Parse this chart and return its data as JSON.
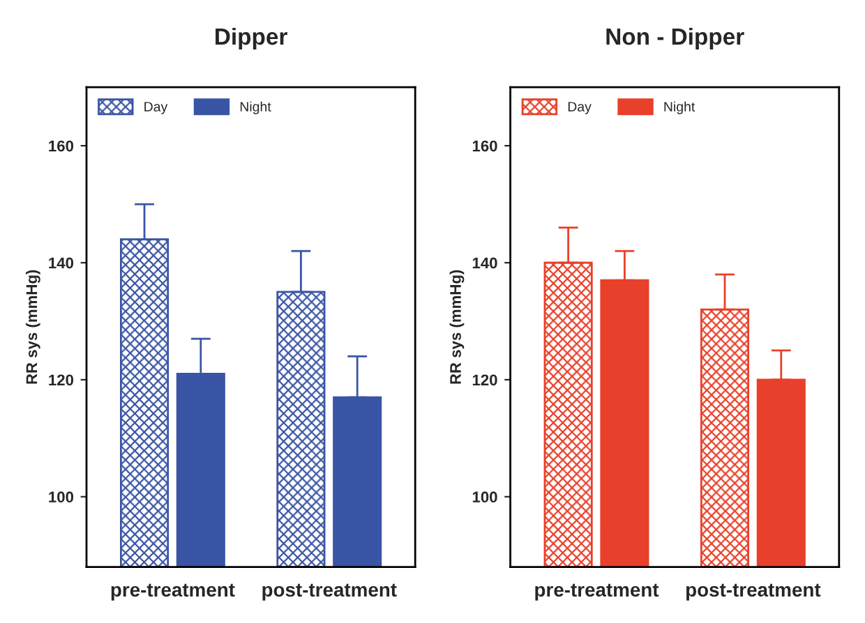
{
  "chart_data": [
    {
      "type": "bar",
      "title": "Dipper",
      "ylabel": "RR sys (mmHg)",
      "categories": [
        "pre-treatment",
        "post-treatment"
      ],
      "series": [
        {
          "name": "Day",
          "color": "#3a55a5",
          "values": [
            144,
            135
          ],
          "errors": [
            [
              144,
              150
            ],
            [
              135,
              142
            ]
          ]
        },
        {
          "name": "Night",
          "color": "#3a55a5",
          "values": [
            121,
            117
          ],
          "errors": [
            [
              121,
              127
            ],
            [
              117,
              124
            ]
          ]
        }
      ],
      "ylim": [
        88,
        170
      ],
      "yticks": [
        100,
        120,
        140,
        160
      ],
      "legend": "top left",
      "grid": false
    },
    {
      "type": "bar",
      "title": "Non - Dipper",
      "ylabel": "RR sys (mmHg)",
      "categories": [
        "pre-treatment",
        "post-treatment"
      ],
      "series": [
        {
          "name": "Day",
          "color": "#e8402a",
          "values": [
            140,
            132
          ],
          "errors": [
            [
              140,
              146
            ],
            [
              132,
              138
            ]
          ]
        },
        {
          "name": "Night",
          "color": "#e8402a",
          "values": [
            137,
            120
          ],
          "errors": [
            [
              137,
              142
            ],
            [
              120,
              125
            ]
          ]
        }
      ],
      "ylim": [
        88,
        170
      ],
      "yticks": [
        100,
        120,
        140,
        160
      ],
      "legend": "top left",
      "grid": false
    }
  ]
}
